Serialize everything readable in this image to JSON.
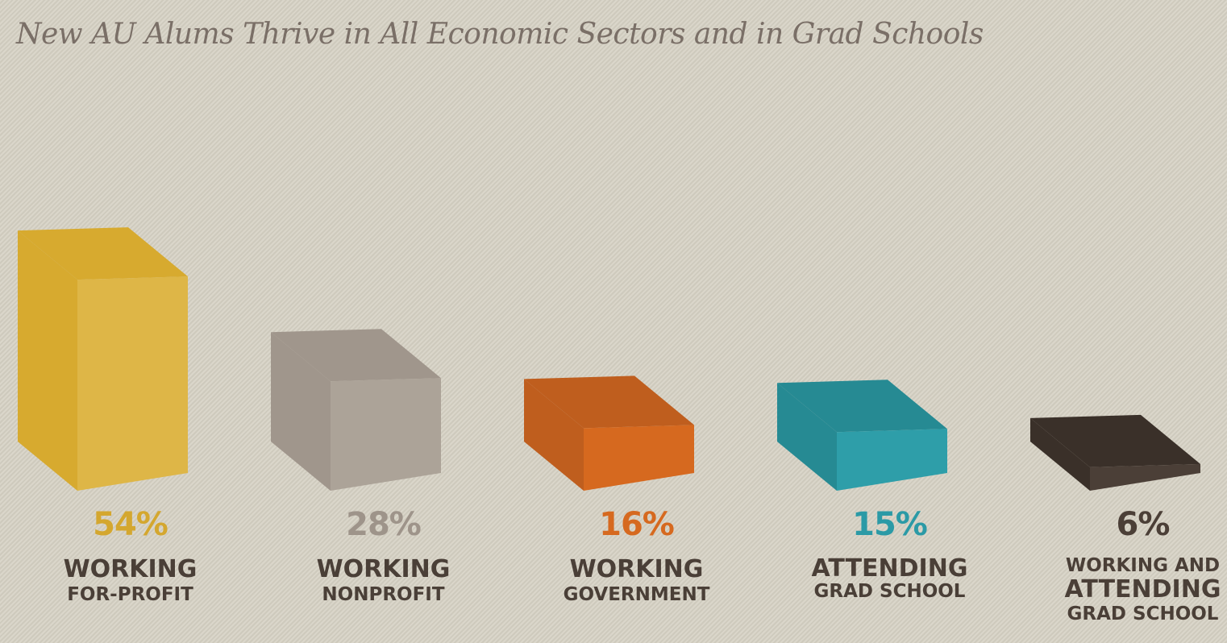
{
  "chart_data": {
    "type": "bar",
    "title": "New AU Alums Thrive in All Economic Sectors and in Grad Schools",
    "ylim": [
      0,
      60
    ],
    "categories": [
      [
        "WORKING",
        "FOR-PROFIT"
      ],
      [
        "WORKING",
        "NONPROFIT"
      ],
      [
        "WORKING",
        "GOVERNMENT"
      ],
      [
        "ATTENDING",
        "GRAD SCHOOL"
      ],
      [
        "WORKING AND",
        "ATTENDING",
        "GRAD SCHOOL"
      ]
    ],
    "values": [
      54,
      28,
      16,
      15,
      6
    ],
    "value_labels": [
      "54%",
      "28%",
      "16%",
      "15%",
      "6%"
    ],
    "colors": [
      {
        "front": "#deb647",
        "side": "#d7aa2f",
        "top": "#d7aa2f",
        "label": "#d4a72f"
      },
      {
        "front": "#aca398",
        "side": "#a0968c",
        "top": "#a0968c",
        "label": "#9e948a"
      },
      {
        "front": "#d6691f",
        "side": "#bf5e1e",
        "top": "#bf5e1e",
        "label": "#d6691f"
      },
      {
        "front": "#2e9ea9",
        "side": "#268a93",
        "top": "#268a93",
        "label": "#2b9aa6"
      },
      {
        "front": "#4b3f37",
        "side": "#3a3029",
        "top": "#3a3029",
        "label": "#4b3f37"
      }
    ],
    "grid": false,
    "legend": "none"
  }
}
